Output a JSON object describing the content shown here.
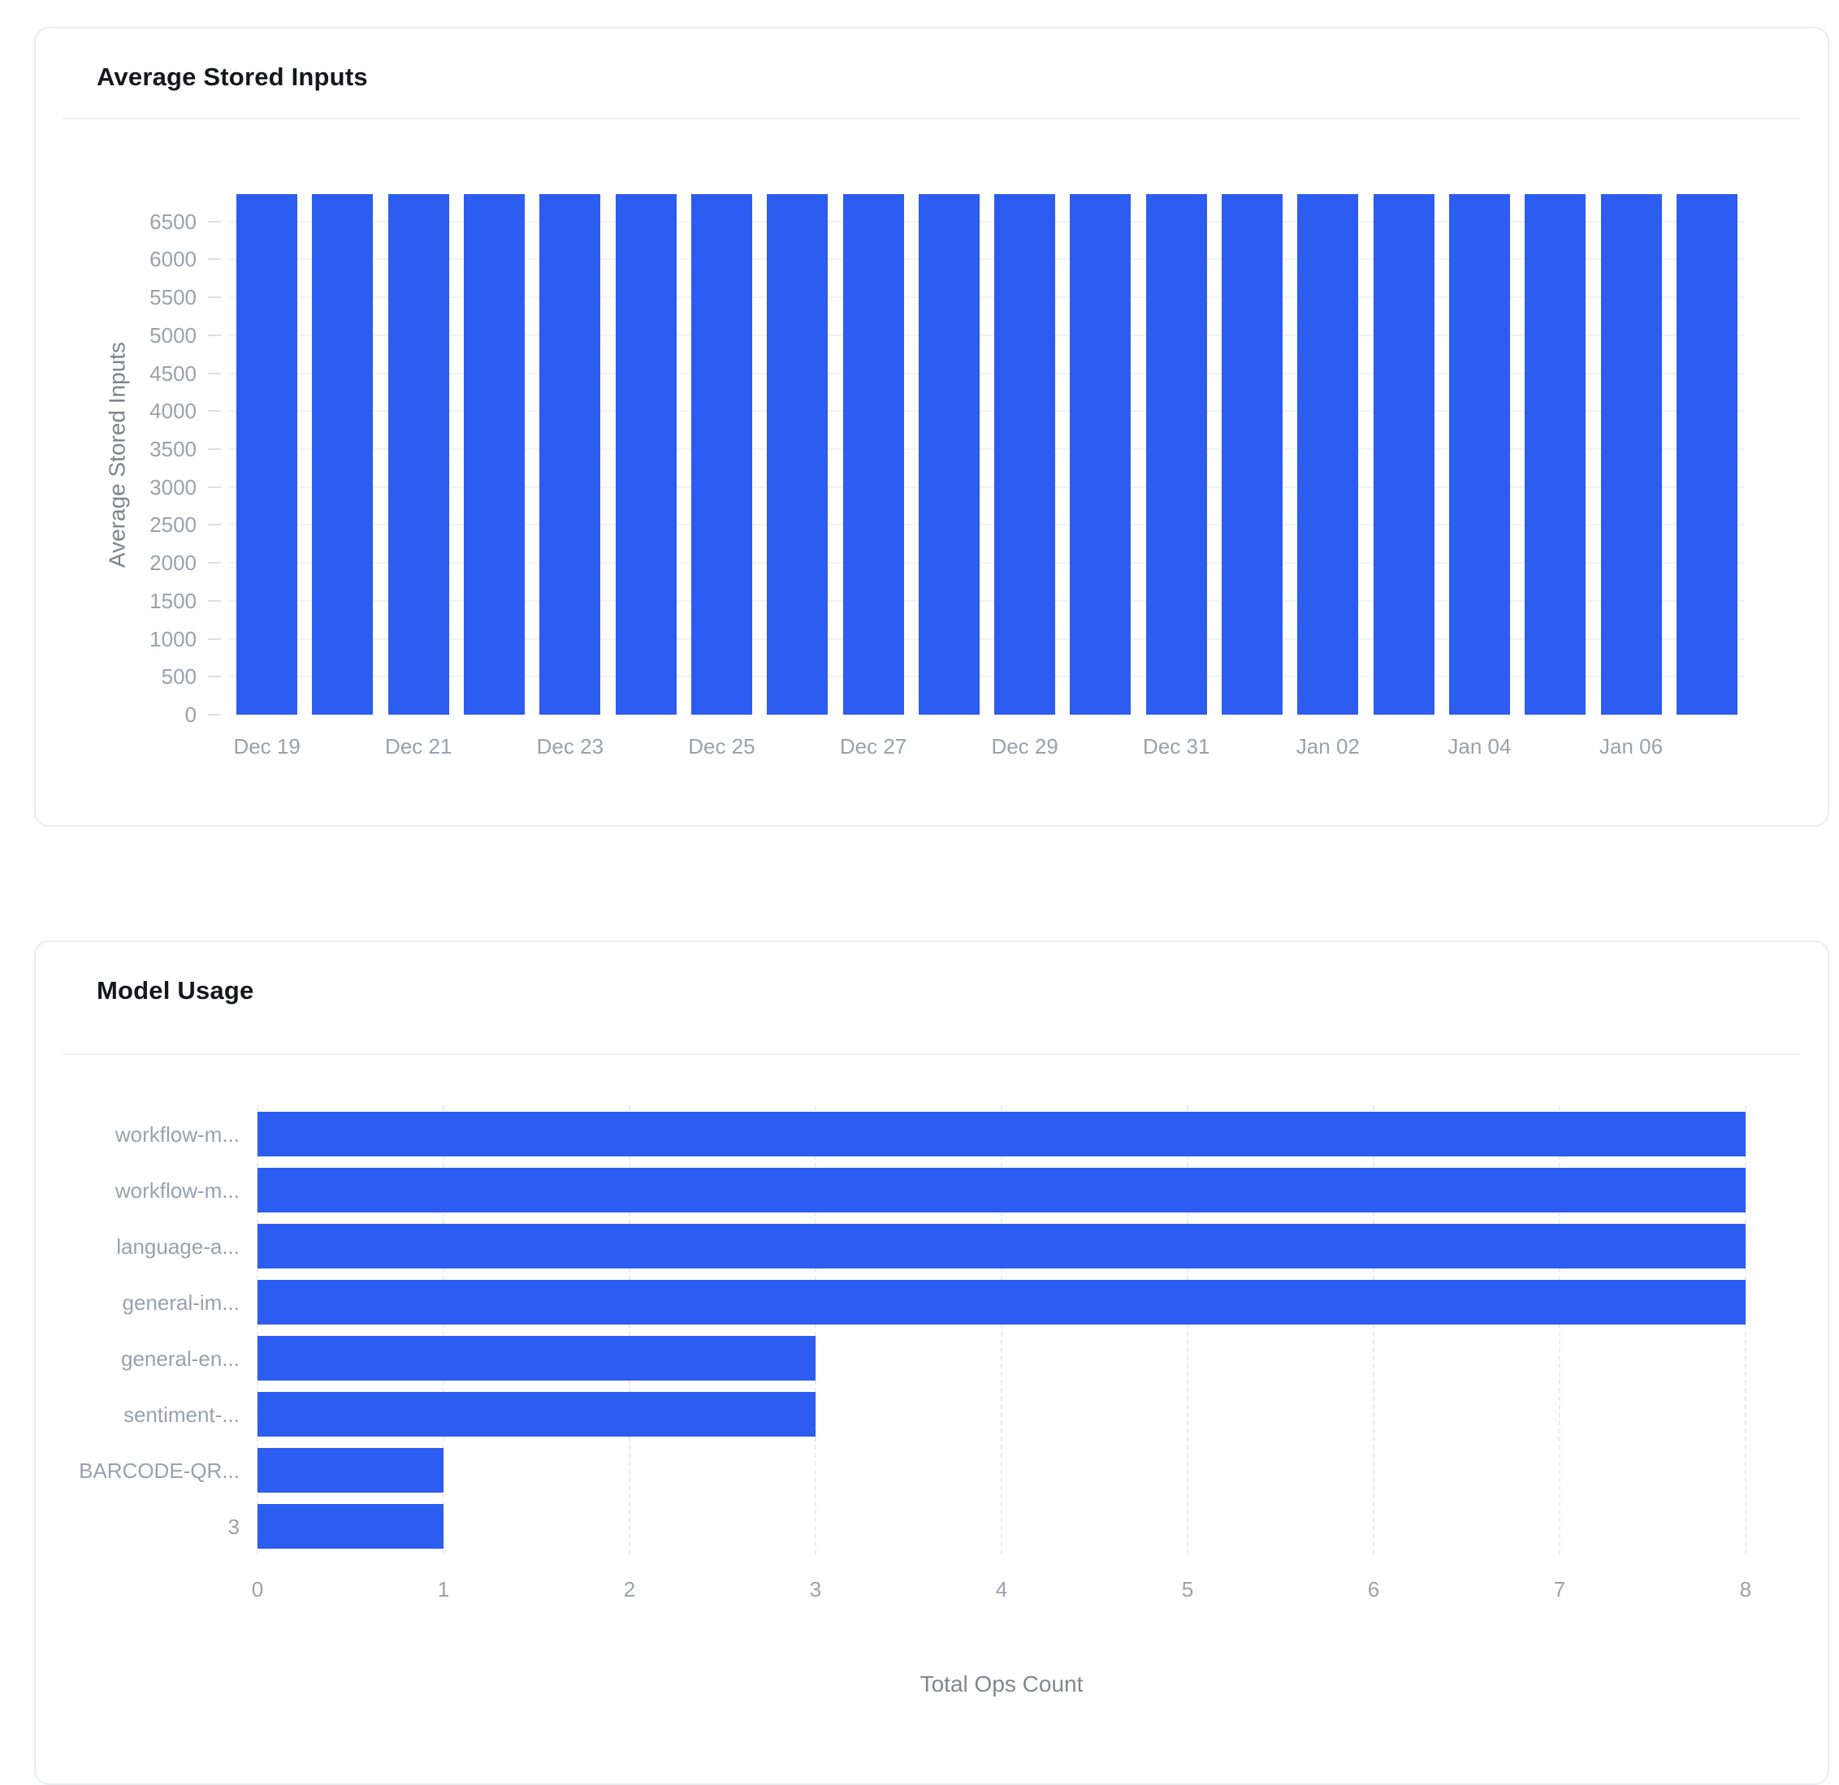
{
  "cards": [
    {
      "title": "Average Stored Inputs"
    },
    {
      "title": "Model Usage"
    }
  ],
  "colors": {
    "bar_blue": "#2d5cf0",
    "tick_label_gray": "#9aa1ab",
    "axis_name_gray": "#7e838d",
    "gridline": "#f1f3f7",
    "gridline_dashed": "#e8ebf1",
    "card_border": "#e9ecf1",
    "title_text": "#15171a"
  },
  "chart_data": [
    {
      "type": "bar",
      "orientation": "vertical",
      "title": "Average Stored Inputs",
      "categories": [
        "Dec 19",
        "Dec 20",
        "Dec 21",
        "Dec 22",
        "Dec 23",
        "Dec 24",
        "Dec 25",
        "Dec 26",
        "Dec 27",
        "Dec 28",
        "Dec 29",
        "Dec 30",
        "Dec 31",
        "Jan 01",
        "Jan 02",
        "Jan 03",
        "Jan 04",
        "Jan 05",
        "Jan 06",
        "Jan 07"
      ],
      "values": [
        6860,
        6860,
        6860,
        6860,
        6860,
        6860,
        6860,
        6860,
        6860,
        6860,
        6860,
        6860,
        6860,
        6860,
        6860,
        6860,
        6860,
        6860,
        6860,
        6860
      ],
      "xlabel": "",
      "ylabel": "Average Stored Inputs",
      "ylim": [
        0,
        6860
      ],
      "y_ticks": [
        0,
        500,
        1000,
        1500,
        2000,
        2500,
        3000,
        3500,
        4000,
        4500,
        5000,
        5500,
        6000,
        6500
      ],
      "x_tick_labels_shown": [
        "Dec 19",
        "Dec 21",
        "Dec 23",
        "Dec 25",
        "Dec 27",
        "Dec 29",
        "Dec 31",
        "Jan 02",
        "Jan 04",
        "Jan 06"
      ],
      "grid": true,
      "legend": "none",
      "bar_color": "#2d5cf0"
    },
    {
      "type": "bar",
      "orientation": "horizontal",
      "title": "Model Usage",
      "categories": [
        "workflow-m...",
        "workflow-m...",
        "language-a...",
        "general-im...",
        "general-en...",
        "sentiment-...",
        "BARCODE-QR...",
        "3"
      ],
      "values": [
        8,
        8,
        8,
        8,
        3,
        3,
        1,
        1
      ],
      "xlabel": "Total Ops Count",
      "ylabel": "",
      "xlim": [
        0,
        8
      ],
      "x_ticks": [
        0,
        1,
        2,
        3,
        4,
        5,
        6,
        7,
        8
      ],
      "grid": true,
      "legend": "none",
      "bar_color": "#2d5cf0"
    }
  ]
}
